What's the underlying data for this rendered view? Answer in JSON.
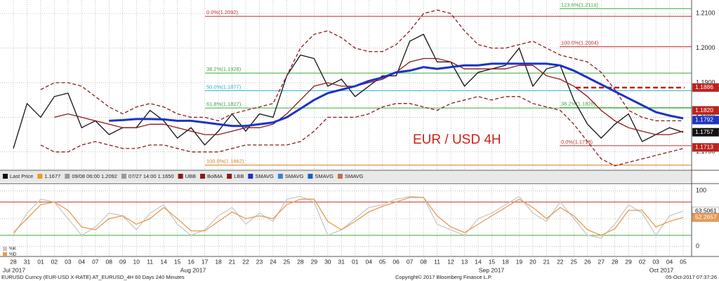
{
  "chart_data": [
    {
      "type": "line",
      "annotation": "EUR / USD 4H",
      "annotation_color": "#d0201a",
      "categories": [
        "28",
        "31",
        "01",
        "02",
        "03",
        "04",
        "07",
        "08",
        "09",
        "10",
        "11",
        "14",
        "15",
        "16",
        "17",
        "18",
        "21",
        "22",
        "23",
        "24",
        "25",
        "28",
        "29",
        "30",
        "31",
        "01",
        "04",
        "05",
        "06",
        "07",
        "08",
        "11",
        "12",
        "13",
        "14",
        "15",
        "18",
        "19",
        "20",
        "21",
        "22",
        "25",
        "26",
        "27",
        "28",
        "29",
        "02",
        "03",
        "04",
        "05"
      ],
      "months": [
        "Jul 2017",
        "Aug 2017",
        "Sep 2017",
        "Oct 2017"
      ],
      "ylim": [
        1.1649,
        1.2139
      ],
      "yticks": [
        {
          "value": 1.21,
          "label": "1.2100"
        },
        {
          "value": 1.2,
          "label": "1.2000"
        },
        {
          "value": 1.19,
          "label": "1.1900"
        },
        {
          "value": 1.18,
          "label": "1.1800"
        },
        {
          "value": 1.17,
          "label": "1.1700"
        }
      ],
      "grid": true,
      "series": [
        {
          "name": "Last Price",
          "color": "#111111",
          "style": "solid",
          "values": [
            1.171,
            1.184,
            1.18,
            1.186,
            1.187,
            1.177,
            1.179,
            1.175,
            1.177,
            1.177,
            1.182,
            1.179,
            1.174,
            1.177,
            1.172,
            1.176,
            1.181,
            1.176,
            1.181,
            1.18,
            1.192,
            1.198,
            1.197,
            1.189,
            1.191,
            1.186,
            1.189,
            1.192,
            1.192,
            1.202,
            1.204,
            1.196,
            1.196,
            1.189,
            1.193,
            1.194,
            1.195,
            1.2,
            1.189,
            1.194,
            1.195,
            1.185,
            1.178,
            1.174,
            1.178,
            1.181,
            1.173,
            1.175,
            1.177,
            1.1757
          ]
        },
        {
          "name": "UBB",
          "color": "#8b1a1a",
          "style": "dashed",
          "values": [
            null,
            null,
            1.188,
            1.19,
            1.19,
            1.189,
            1.186,
            1.183,
            1.181,
            1.183,
            1.184,
            1.183,
            1.181,
            1.18,
            1.18,
            1.179,
            1.181,
            1.182,
            1.183,
            1.184,
            1.192,
            1.2,
            1.204,
            1.205,
            1.203,
            1.2,
            1.199,
            1.199,
            1.201,
            1.205,
            1.21,
            1.211,
            1.21,
            1.205,
            1.201,
            1.2,
            1.2,
            1.201,
            1.202,
            1.2,
            1.198,
            1.197,
            1.196,
            1.193,
            1.188,
            1.182,
            1.18,
            1.179,
            1.179,
            1.179
          ]
        },
        {
          "name": "BolMA",
          "color": "#8b1a1a",
          "style": "solid",
          "values": [
            null,
            null,
            null,
            1.18,
            1.181,
            1.18,
            1.179,
            1.178,
            1.177,
            1.177,
            1.178,
            1.178,
            1.177,
            1.176,
            1.175,
            1.175,
            1.176,
            1.177,
            1.177,
            1.178,
            1.181,
            1.185,
            1.189,
            1.19,
            1.189,
            1.189,
            1.19,
            1.191,
            1.193,
            1.196,
            1.197,
            1.197,
            1.196,
            1.194,
            1.194,
            1.194,
            1.194,
            1.195,
            1.195,
            1.192,
            1.191,
            1.189,
            1.186,
            1.182,
            1.179,
            1.177,
            1.176,
            1.175,
            1.175,
            1.176
          ]
        },
        {
          "name": "LBB",
          "color": "#8b1a1a",
          "style": "dashed",
          "values": [
            null,
            null,
            1.172,
            1.17,
            1.17,
            1.172,
            1.173,
            1.172,
            1.171,
            1.171,
            1.172,
            1.172,
            1.171,
            1.17,
            1.17,
            1.17,
            1.171,
            1.172,
            1.172,
            1.172,
            1.172,
            1.173,
            1.176,
            1.18,
            1.18,
            1.18,
            1.181,
            1.183,
            1.184,
            1.184,
            1.183,
            1.182,
            1.184,
            1.185,
            1.186,
            1.185,
            1.186,
            1.186,
            1.184,
            1.183,
            1.182,
            1.178,
            1.173,
            1.168,
            1.166,
            1.167,
            1.168,
            1.169,
            1.17,
            1.171
          ]
        },
        {
          "name": "SMAVG",
          "color": "#1c34c4",
          "style": "thick",
          "values": [
            null,
            null,
            null,
            null,
            null,
            null,
            null,
            1.179,
            1.1792,
            1.1795,
            1.1795,
            1.1794,
            1.179,
            1.179,
            1.1785,
            1.178,
            1.1775,
            1.1775,
            1.178,
            1.1785,
            1.18,
            1.1825,
            1.185,
            1.187,
            1.188,
            1.189,
            1.1905,
            1.1915,
            1.193,
            1.1935,
            1.1945,
            1.194,
            1.1945,
            1.195,
            1.195,
            1.1955,
            1.1955,
            1.1955,
            1.1955,
            1.1955,
            1.195,
            1.1935,
            1.1915,
            1.1895,
            1.1875,
            1.1855,
            1.1835,
            1.1815,
            1.1805,
            1.1797
          ]
        }
      ],
      "legend_after_price": [
        {
          "text": "1.1677",
          "color": "#e8a020"
        },
        {
          "text": "09/08 06:00 1.2092",
          "color": "#999"
        },
        {
          "text": "07/27 14:00 1.1650",
          "color": "#999"
        }
      ],
      "legend_tail": [
        {
          "text": "SMAVG",
          "color": "#3a7fd8"
        },
        {
          "text": "SMAVG",
          "color": "#1c5fc4"
        },
        {
          "text": "SMAVG",
          "color": "#c07050"
        }
      ],
      "fibo_left": [
        {
          "label": "0.0%(1.2092)",
          "value": 1.2092,
          "color": "#c0302a"
        },
        {
          "label": "38.2%(1.1928)",
          "value": 1.1928,
          "color": "#3cab3c"
        },
        {
          "label": "50.0%(1.1877)",
          "value": 1.1877,
          "color": "#2ab0c8"
        },
        {
          "label": "61.8%(1.1827)",
          "value": 1.1827,
          "color": "#3cab3c"
        },
        {
          "label": "100.0%(1.1662)",
          "value": 1.1662,
          "color": "#d08020"
        }
      ],
      "fibo_right": [
        {
          "label": "123.6%(1.2114)",
          "value": 1.2114,
          "color": "#3cab3c"
        },
        {
          "label": "100.0%(1.2004)",
          "value": 1.2004,
          "color": "#c0302a"
        },
        {
          "label": "38.2%(1.1828)",
          "value": 1.1828,
          "color": "#3cab3c"
        },
        {
          "label": "0.0%(1.1718)",
          "value": 1.1718,
          "color": "#c0302a"
        }
      ],
      "tags": [
        {
          "value": 1.1886,
          "label": "1.1886",
          "color": "#c0201a"
        },
        {
          "value": 1.182,
          "label": "1.1820",
          "color": "#c0201a"
        },
        {
          "value": 1.1792,
          "label": "1.1792",
          "color": "#1c34c4"
        },
        {
          "value": 1.1757,
          "label": "1.1757",
          "color": "#111111"
        },
        {
          "value": 1.1713,
          "label": "1.1713",
          "color": "#c0201a"
        }
      ]
    },
    {
      "type": "line",
      "ylim": [
        -18,
        113
      ],
      "yticks": [
        0,
        50,
        100
      ],
      "grid": true,
      "levels": [
        {
          "value": 80,
          "color": "#c0302a"
        },
        {
          "value": 20,
          "color": "#3cab3c"
        }
      ],
      "series": [
        {
          "name": "%K",
          "color": "#c8c8c8",
          "values": [
            20,
            60,
            85,
            80,
            50,
            20,
            35,
            60,
            55,
            30,
            60,
            75,
            40,
            20,
            30,
            55,
            70,
            40,
            60,
            45,
            85,
            90,
            80,
            20,
            30,
            50,
            70,
            75,
            85,
            90,
            88,
            40,
            30,
            20,
            50,
            60,
            75,
            90,
            60,
            45,
            80,
            50,
            20,
            15,
            40,
            75,
            60,
            20,
            55,
            63.5061
          ]
        },
        {
          "name": "%D",
          "color": "#e89a50",
          "values": [
            25,
            50,
            75,
            80,
            65,
            35,
            30,
            50,
            55,
            40,
            50,
            70,
            50,
            28,
            28,
            45,
            62,
            50,
            55,
            50,
            75,
            85,
            85,
            45,
            30,
            45,
            62,
            72,
            80,
            88,
            88,
            55,
            35,
            25,
            40,
            55,
            70,
            85,
            70,
            50,
            70,
            55,
            30,
            20,
            32,
            65,
            65,
            35,
            45,
            52.2657
          ]
        }
      ],
      "tags": [
        {
          "value": 63.5061,
          "color": "#ffffff"
        },
        {
          "value": 52.2657,
          "color": "#e89a50"
        }
      ]
    }
  ],
  "footer": {
    "left": "EURUSD Curncy (EUR-USD X-RATE) AT_EURUSD_4H 60 Days 240 Minutes",
    "center": "Copyright© 2017 Bloomberg Finance L.P.",
    "right": "05-Oct-2017 07:37:26"
  }
}
